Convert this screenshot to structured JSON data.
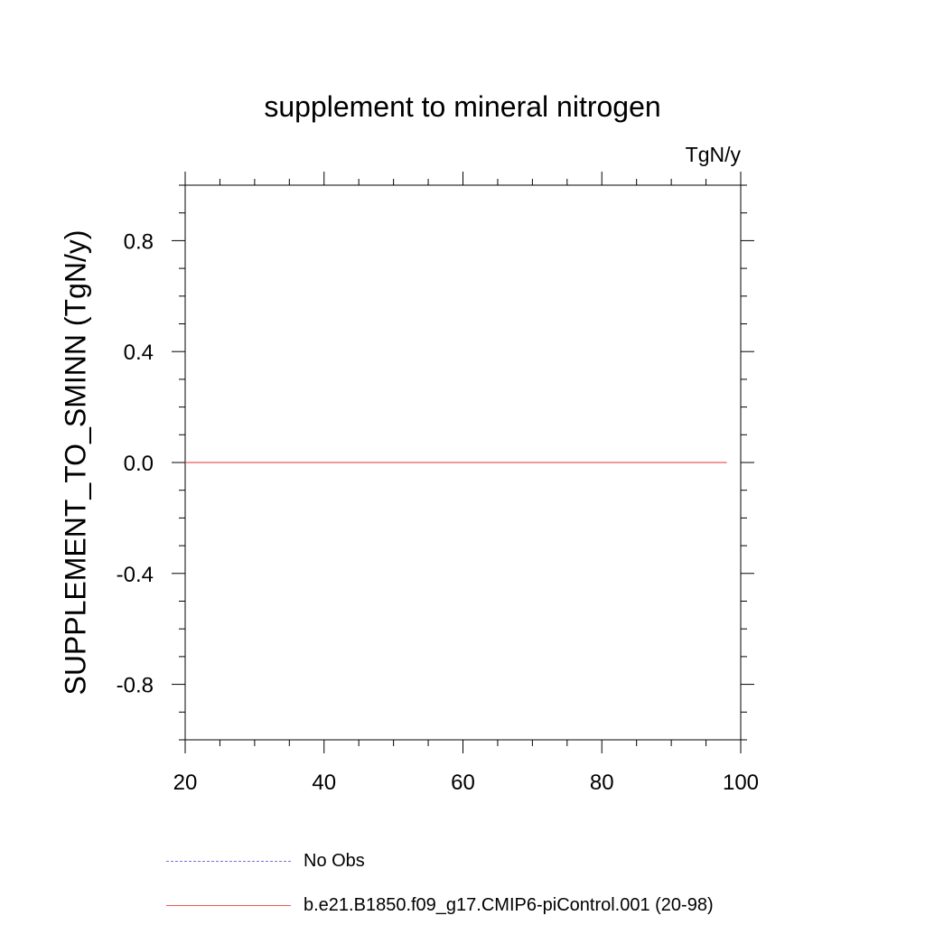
{
  "chart_data": {
    "type": "line",
    "title": "supplement to mineral nitrogen",
    "units_label": "TgN/y",
    "xlabel": "",
    "ylabel": "SUPPLEMENT_TO_SMINN  (TgN/y)",
    "xlim": [
      20,
      100
    ],
    "ylim": [
      -1.0,
      1.0
    ],
    "x_ticks": [
      20,
      40,
      60,
      80,
      100
    ],
    "x_tick_labels": [
      "20",
      "40",
      "60",
      "80",
      "100"
    ],
    "y_ticks": [
      -0.8,
      -0.4,
      0.0,
      0.4,
      0.8
    ],
    "y_tick_labels": [
      "-0.8",
      "-0.4",
      "0.0",
      "0.4",
      "0.8"
    ],
    "grid": false,
    "legend_position": "bottom",
    "series": [
      {
        "name": "No Obs",
        "color": "#7b6fd6",
        "style": "dashed",
        "x": [],
        "values": []
      },
      {
        "name": "b.e21.B1850.f09_g17.CMIP6-piControl.001 (20-98)",
        "color": "#e85a5a",
        "style": "solid",
        "x": [
          20,
          98
        ],
        "values": [
          0.0,
          0.0
        ]
      }
    ]
  }
}
